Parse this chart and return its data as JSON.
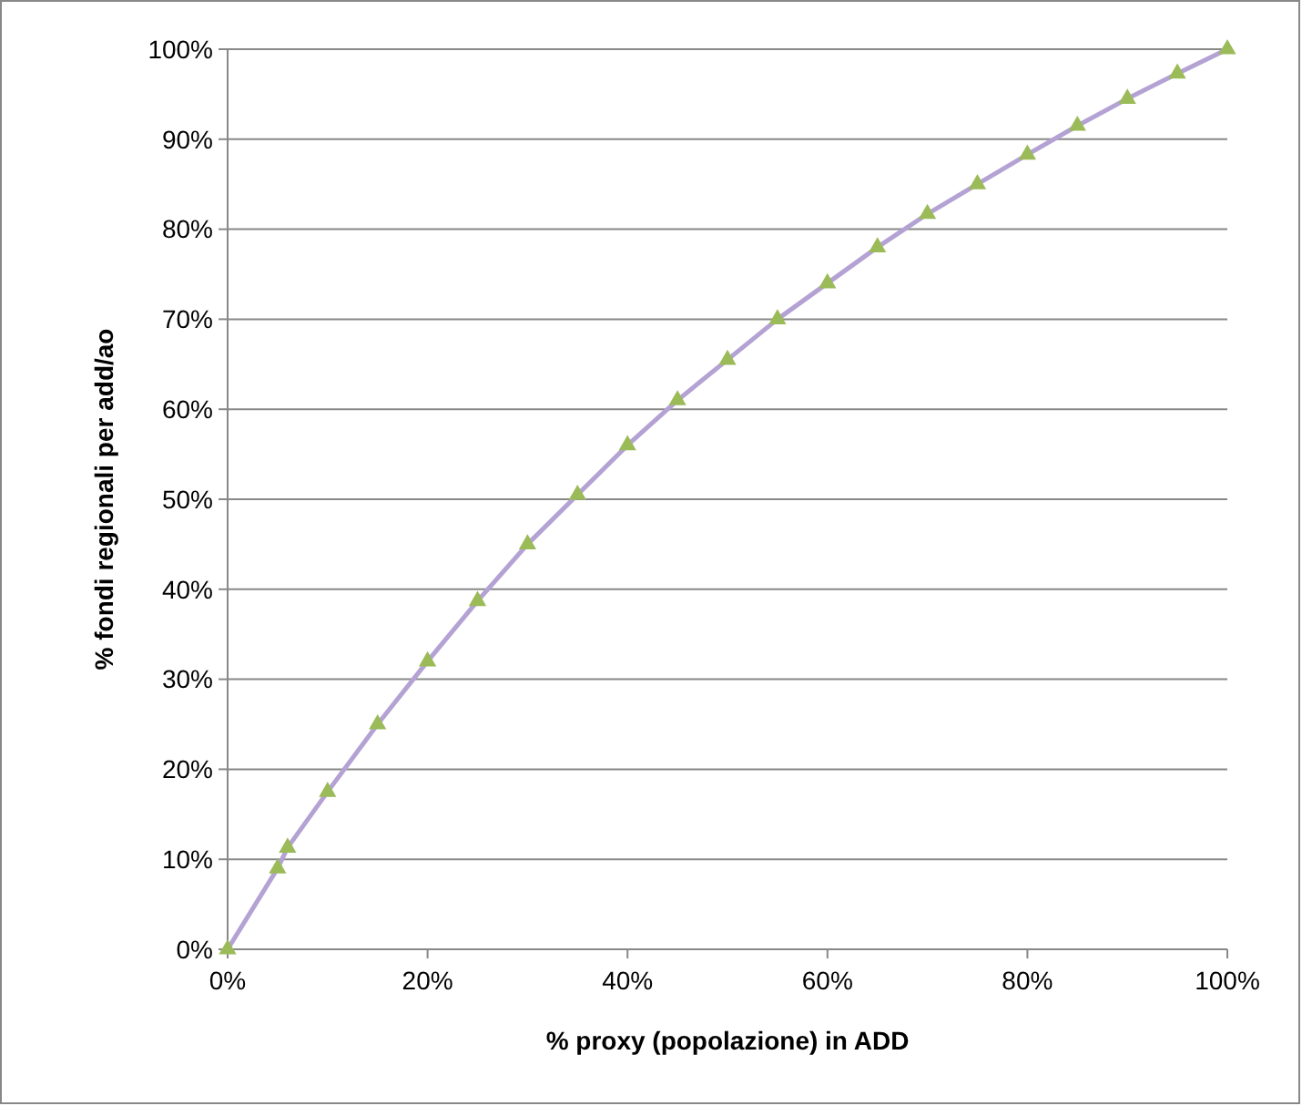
{
  "chart_data": {
    "type": "line",
    "xlabel": "% proxy (popolazione) in ADD",
    "ylabel": "% fondi regionali per add/ao",
    "x": [
      0,
      5,
      6,
      10,
      15,
      20,
      25,
      30,
      35,
      40,
      45,
      50,
      55,
      60,
      65,
      70,
      75,
      80,
      85,
      90,
      95,
      100
    ],
    "series": [
      {
        "color": "#b3a2d3",
        "colors": [
          "#9bbb59",
          "#9bbb59",
          "#9bbb59",
          "#9bbb59",
          "#9bbb59",
          "#9bbb59",
          "#9bbb59",
          "#9bbb59",
          "#9bbb59",
          "#9bbb59",
          "#9bbb59",
          "#9bbb59",
          "#9bbb59",
          "#9bbb59",
          "#9bbb59",
          "#9bbb59",
          "#9bbb59",
          "#9bbb59",
          "#9bbb59",
          "#9bbb59",
          "#9bbb59",
          "#9bbb59"
        ],
        "values": [
          0,
          9,
          11.3,
          17.5,
          25,
          32,
          38.7,
          45,
          50.5,
          56,
          61,
          65.5,
          70,
          74,
          78,
          81.7,
          85,
          88.3,
          91.5,
          94.5,
          97.3,
          100
        ]
      }
    ],
    "marker": "triangle",
    "grid": "y",
    "xlim": [
      0,
      100
    ],
    "ylim": [
      0,
      100
    ],
    "xticks": [
      {
        "value": 0,
        "label": "0%"
      },
      {
        "value": 20,
        "label": "20%"
      },
      {
        "value": 40,
        "label": "40%"
      },
      {
        "value": 60,
        "label": "60%"
      },
      {
        "value": 80,
        "label": "80%"
      },
      {
        "value": 100,
        "label": "100%"
      }
    ],
    "yticks": [
      {
        "value": 0,
        "label": "0%"
      },
      {
        "value": 10,
        "label": "10%"
      },
      {
        "value": 20,
        "label": "20%"
      },
      {
        "value": 30,
        "label": "30%"
      },
      {
        "value": 40,
        "label": "40%"
      },
      {
        "value": 50,
        "label": "50%"
      },
      {
        "value": 60,
        "label": "60%"
      },
      {
        "value": 70,
        "label": "70%"
      },
      {
        "value": 80,
        "label": "80%"
      },
      {
        "value": 90,
        "label": "90%"
      },
      {
        "value": 100,
        "label": "100%"
      }
    ]
  }
}
